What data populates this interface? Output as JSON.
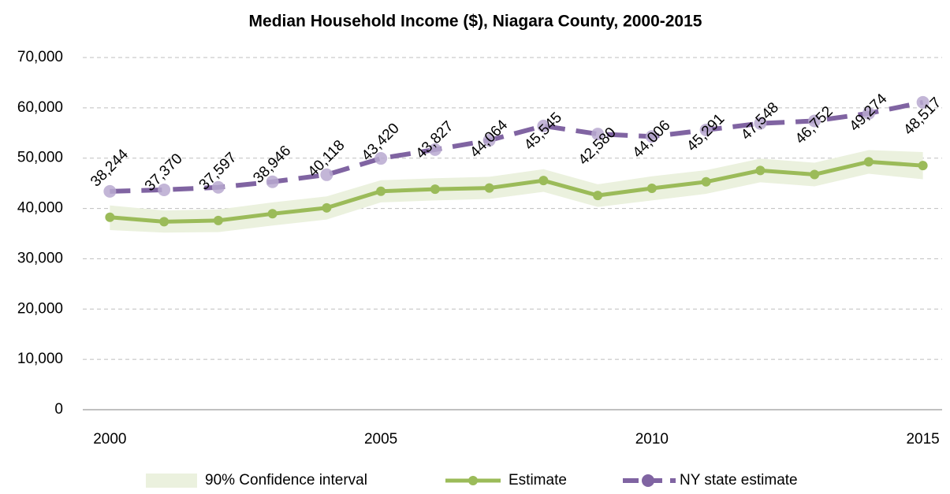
{
  "chart_data": {
    "type": "line",
    "title": "Median Household Income ($), Niagara County, 2000-2015",
    "categories": [
      "2000",
      null,
      null,
      null,
      null,
      "2005",
      null,
      null,
      null,
      null,
      "2010",
      null,
      null,
      null,
      null,
      "2015"
    ],
    "ylim": [
      0,
      70000
    ],
    "yticks": [
      0,
      {
        "value": 10000,
        "label": "10,000"
      },
      {
        "value": 20000,
        "label": "20,000"
      },
      {
        "value": 30000,
        "label": "30,000"
      },
      {
        "value": 40000,
        "label": "40,000"
      },
      {
        "value": 50000,
        "label": "50,000"
      },
      {
        "value": 60000,
        "label": "60,000"
      },
      {
        "value": 70000,
        "label": "70,000"
      }
    ],
    "grid": true,
    "band": {
      "name": "90% Confidence interval",
      "color": "#ebf1de",
      "lower": [
        35700,
        35200,
        35300,
        36600,
        37800,
        41200,
        41600,
        41900,
        43300,
        40300,
        41600,
        42900,
        45200,
        44400,
        46900,
        45800
      ],
      "upper": [
        40600,
        39600,
        39800,
        41200,
        42400,
        45600,
        46000,
        46300,
        47800,
        44800,
        46400,
        47600,
        49900,
        49100,
        51600,
        51200
      ]
    },
    "series": [
      {
        "name": "Estimate",
        "color": "#9bbb59",
        "values": [
          38244,
          37370,
          37597,
          38946,
          40118,
          43420,
          43827,
          44064,
          45545,
          42580,
          44006,
          45291,
          47548,
          46752,
          49274,
          48517
        ],
        "value_labels": [
          "38,244",
          "37,370",
          "37,597",
          "38,946",
          "40,118",
          "43,420",
          "43,827",
          "44,064",
          "45,545",
          "42,580",
          "44,006",
          "45,291",
          "47,548",
          "46,752",
          "49,274",
          "48,517"
        ]
      },
      {
        "name": "NY state estimate",
        "color": "#8064a2",
        "marker_color": "#b9a9d0",
        "dashed": true,
        "values": [
          43400,
          43700,
          44200,
          45300,
          46700,
          49950,
          51700,
          53550,
          56400,
          54800,
          54300,
          55600,
          56900,
          57400,
          58900,
          61100
        ]
      }
    ]
  }
}
